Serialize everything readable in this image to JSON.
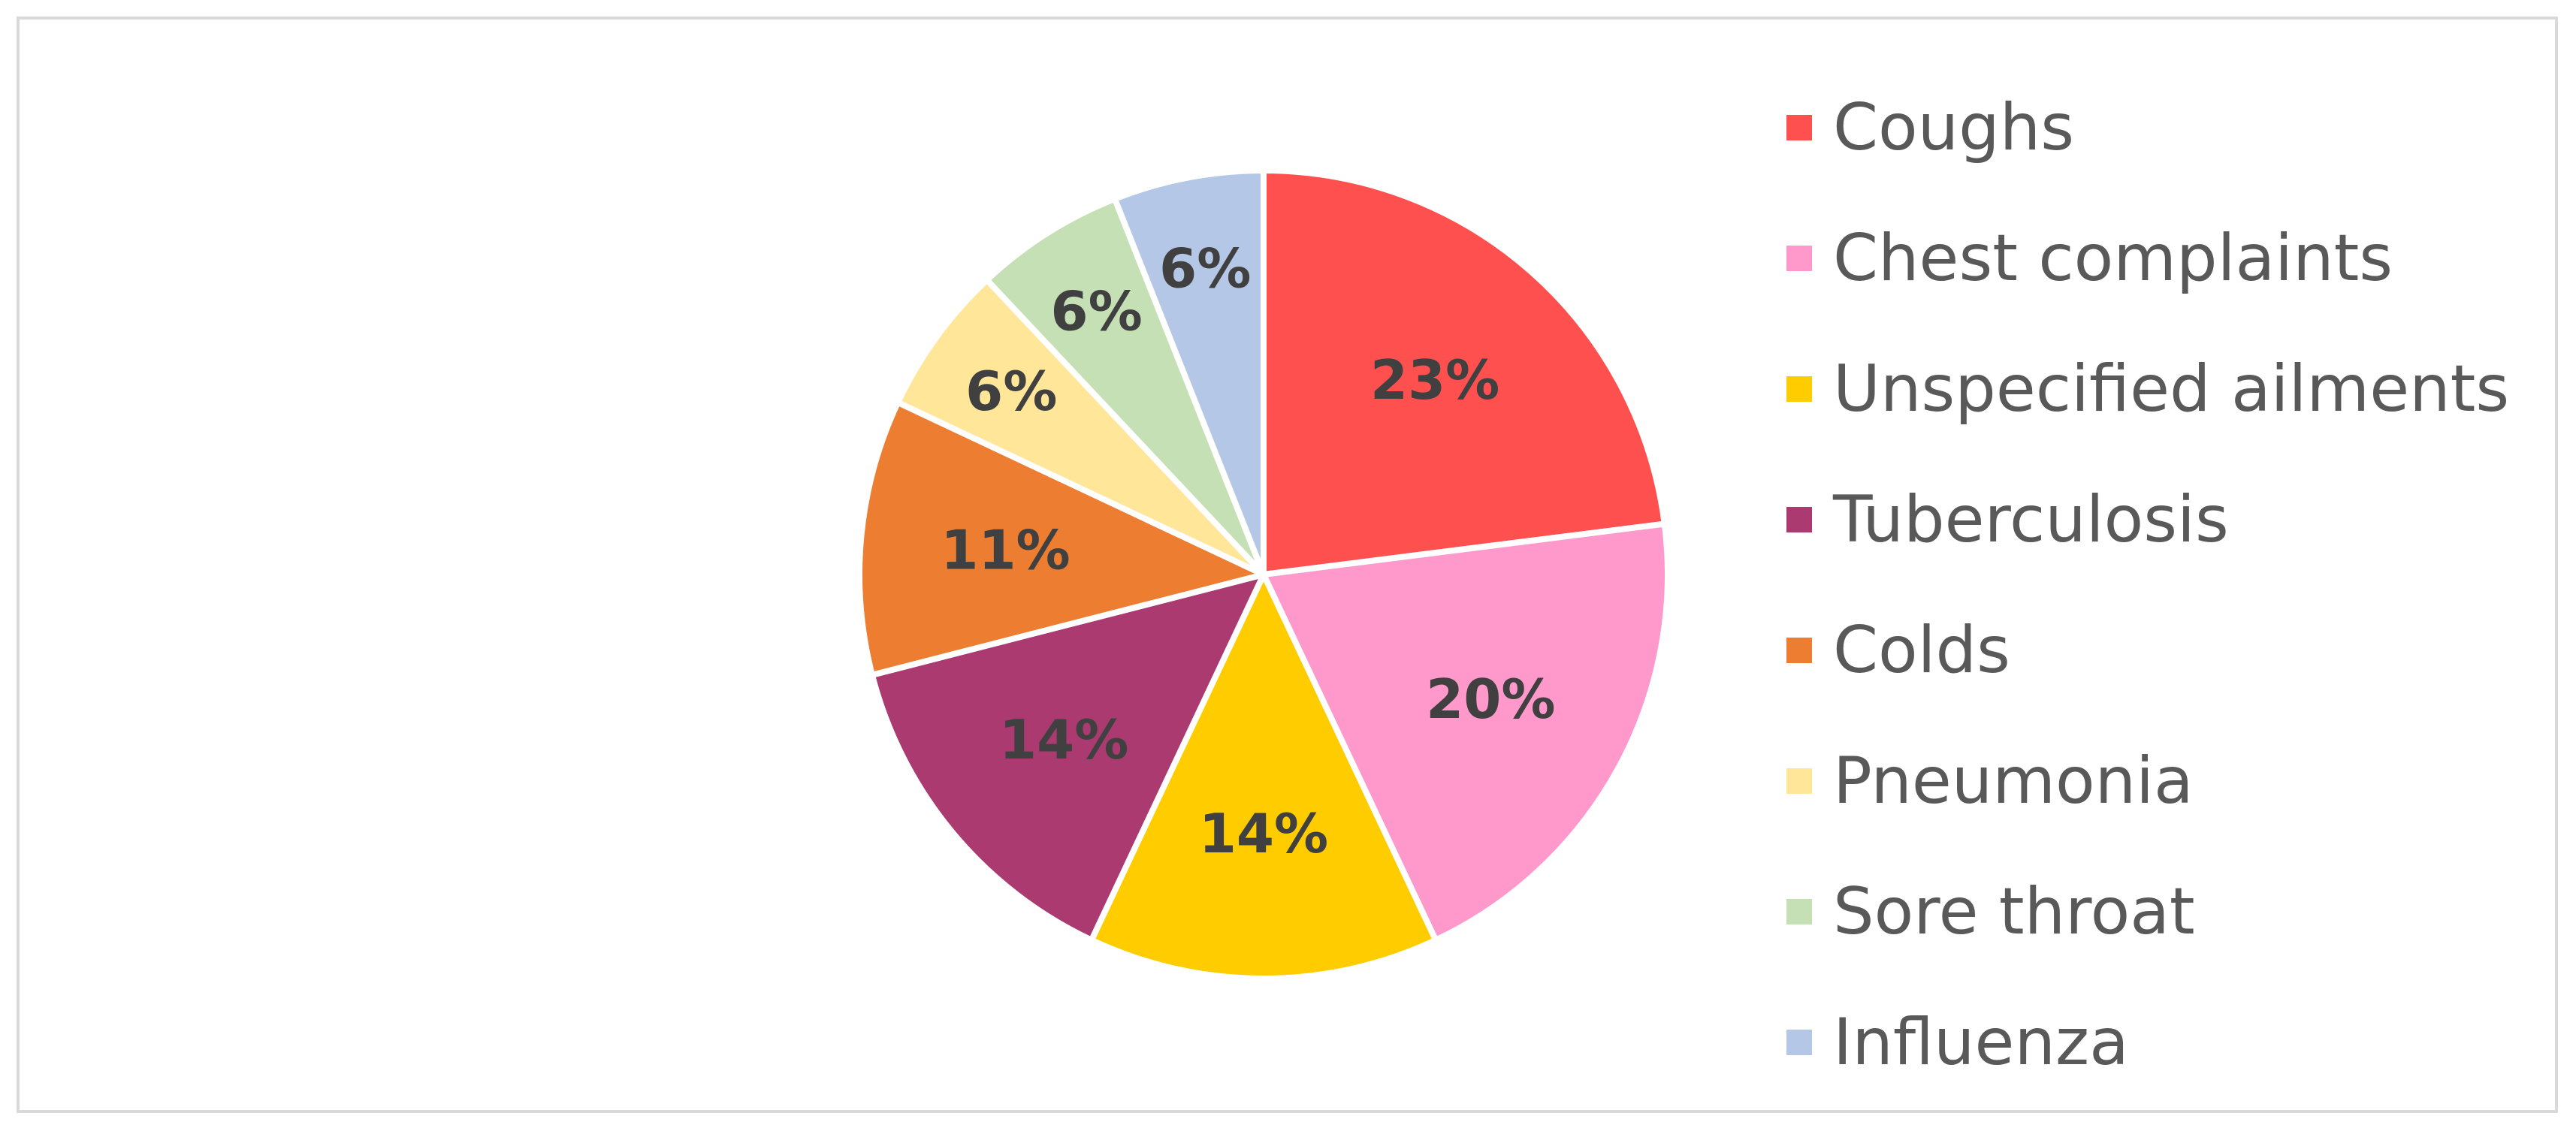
{
  "chart_data": {
    "type": "pie",
    "slices": [
      {
        "label": "Coughs",
        "value": 23,
        "display": "23%",
        "color": "#ff5050"
      },
      {
        "label": "Chest complaints",
        "value": 20,
        "display": "20%",
        "color": "#ff99cc"
      },
      {
        "label": "Unspecified ailments",
        "value": 14,
        "display": "14%",
        "color": "#ffcc00"
      },
      {
        "label": "Tuberculosis",
        "value": 14,
        "display": "14%",
        "color": "#aa3a70"
      },
      {
        "label": "Colds",
        "value": 11,
        "display": "11%",
        "color": "#ed7d31"
      },
      {
        "label": "Pneumonia",
        "value": 6,
        "display": "6%",
        "color": "#ffe699"
      },
      {
        "label": "Sore throat",
        "value": 6,
        "display": "6%",
        "color": "#c5e0b4"
      },
      {
        "label": "Influenza",
        "value": 6,
        "display": "6%",
        "color": "#b4c7e7"
      }
    ],
    "start_angle": "12 o'clock",
    "direction": "clockwise",
    "legend_position": "right"
  }
}
